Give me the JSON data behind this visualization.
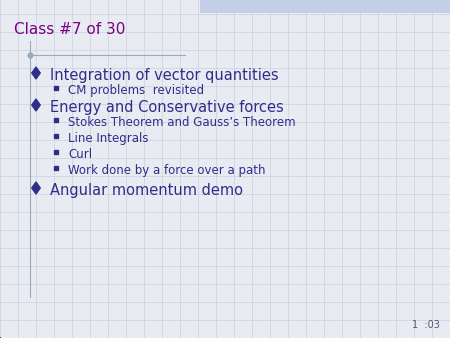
{
  "title": "Class #7 of 30",
  "title_color": "#7B0080",
  "title_fontsize": 11,
  "background_color": "#E8EBF2",
  "grid_color": "#C5CAD8",
  "bullet_color": "#2E2E8A",
  "sub_color": "#2E2E8A",
  "main_bullets": [
    "Integration of vector quantities",
    "Energy and Conservative forces",
    "Angular momentum demo"
  ],
  "sub_bullets": {
    "0": [
      "CM problems  revisited"
    ],
    "1": [
      "Stokes Theorem and Gauss’s Theorem",
      "Line Integrals",
      "Curl",
      "Work done by a force over a path"
    ],
    "2": []
  },
  "footer": "1  :03",
  "footer_color": "#555577",
  "footer_fontsize": 7,
  "main_fontsize": 10.5,
  "sub_fontsize": 8.5,
  "top_bar_color": "#C5CEE8",
  "vline_color": "#9AAABB"
}
